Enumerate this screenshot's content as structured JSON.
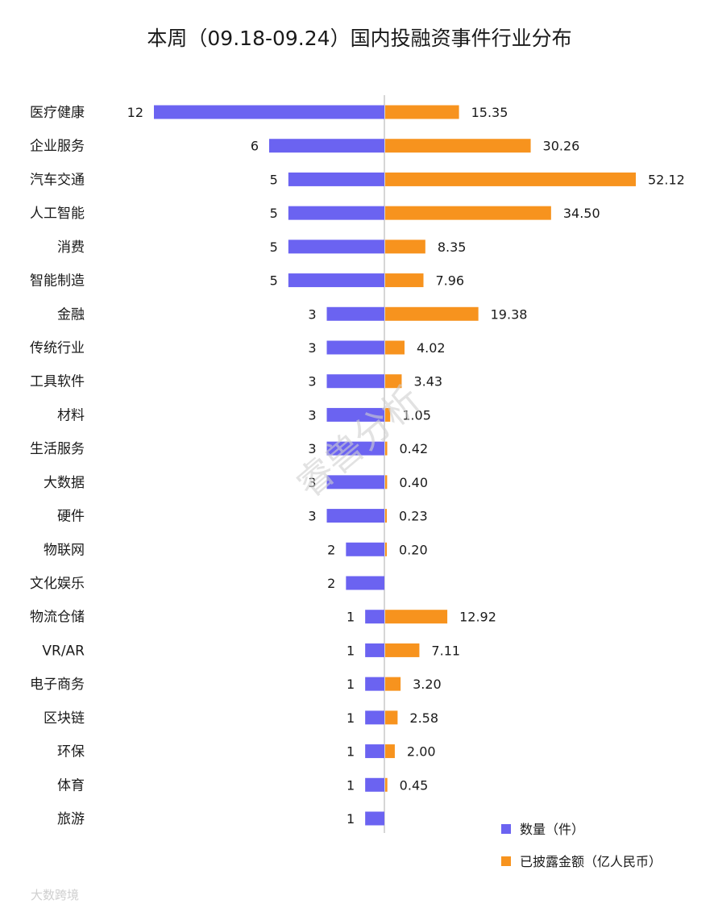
{
  "chart_data": {
    "type": "bar",
    "title": "本周（09.18-09.24）国内投融资事件行业分布",
    "categories": [
      "医疗健康",
      "企业服务",
      "汽车交通",
      "人工智能",
      "消费",
      "智能制造",
      "金融",
      "传统行业",
      "工具软件",
      "材料",
      "生活服务",
      "大数据",
      "硬件",
      "物联网",
      "文化娱乐",
      "物流仓储",
      "VR/AR",
      "电子商务",
      "区块链",
      "环保",
      "体育",
      "旅游"
    ],
    "series": [
      {
        "name": "数量（件）",
        "color": "#6b63f1",
        "values": [
          12,
          6,
          5,
          5,
          5,
          5,
          3,
          3,
          3,
          3,
          3,
          3,
          3,
          2,
          2,
          1,
          1,
          1,
          1,
          1,
          1,
          1
        ],
        "labels": [
          "12",
          "6",
          "5",
          "5",
          "5",
          "5",
          "3",
          "3",
          "3",
          "3",
          "3",
          "3",
          "3",
          "2",
          "2",
          "1",
          "1",
          "1",
          "1",
          "1",
          "1",
          "1"
        ]
      },
      {
        "name": "已披露金额（亿人民币）",
        "color": "#f7931e",
        "values": [
          15.35,
          30.26,
          52.12,
          34.5,
          8.35,
          7.96,
          19.38,
          4.02,
          3.43,
          1.05,
          0.42,
          0.4,
          0.23,
          0.2,
          null,
          12.92,
          7.11,
          3.2,
          2.58,
          2.0,
          0.45,
          null
        ],
        "labels": [
          "15.35",
          "30.26",
          "52.12",
          "34.50",
          "8.35",
          "7.96",
          "19.38",
          "4.02",
          "3.43",
          "1.05",
          "0.42",
          "0.40",
          "0.23",
          "0.20",
          "",
          "12.92",
          "7.11",
          "3.20",
          "2.58",
          "2.00",
          "0.45",
          ""
        ]
      }
    ],
    "legend_position": "bottom-right",
    "grid": false
  },
  "watermark": "睿兽分析",
  "logo_text": "大数跨境"
}
